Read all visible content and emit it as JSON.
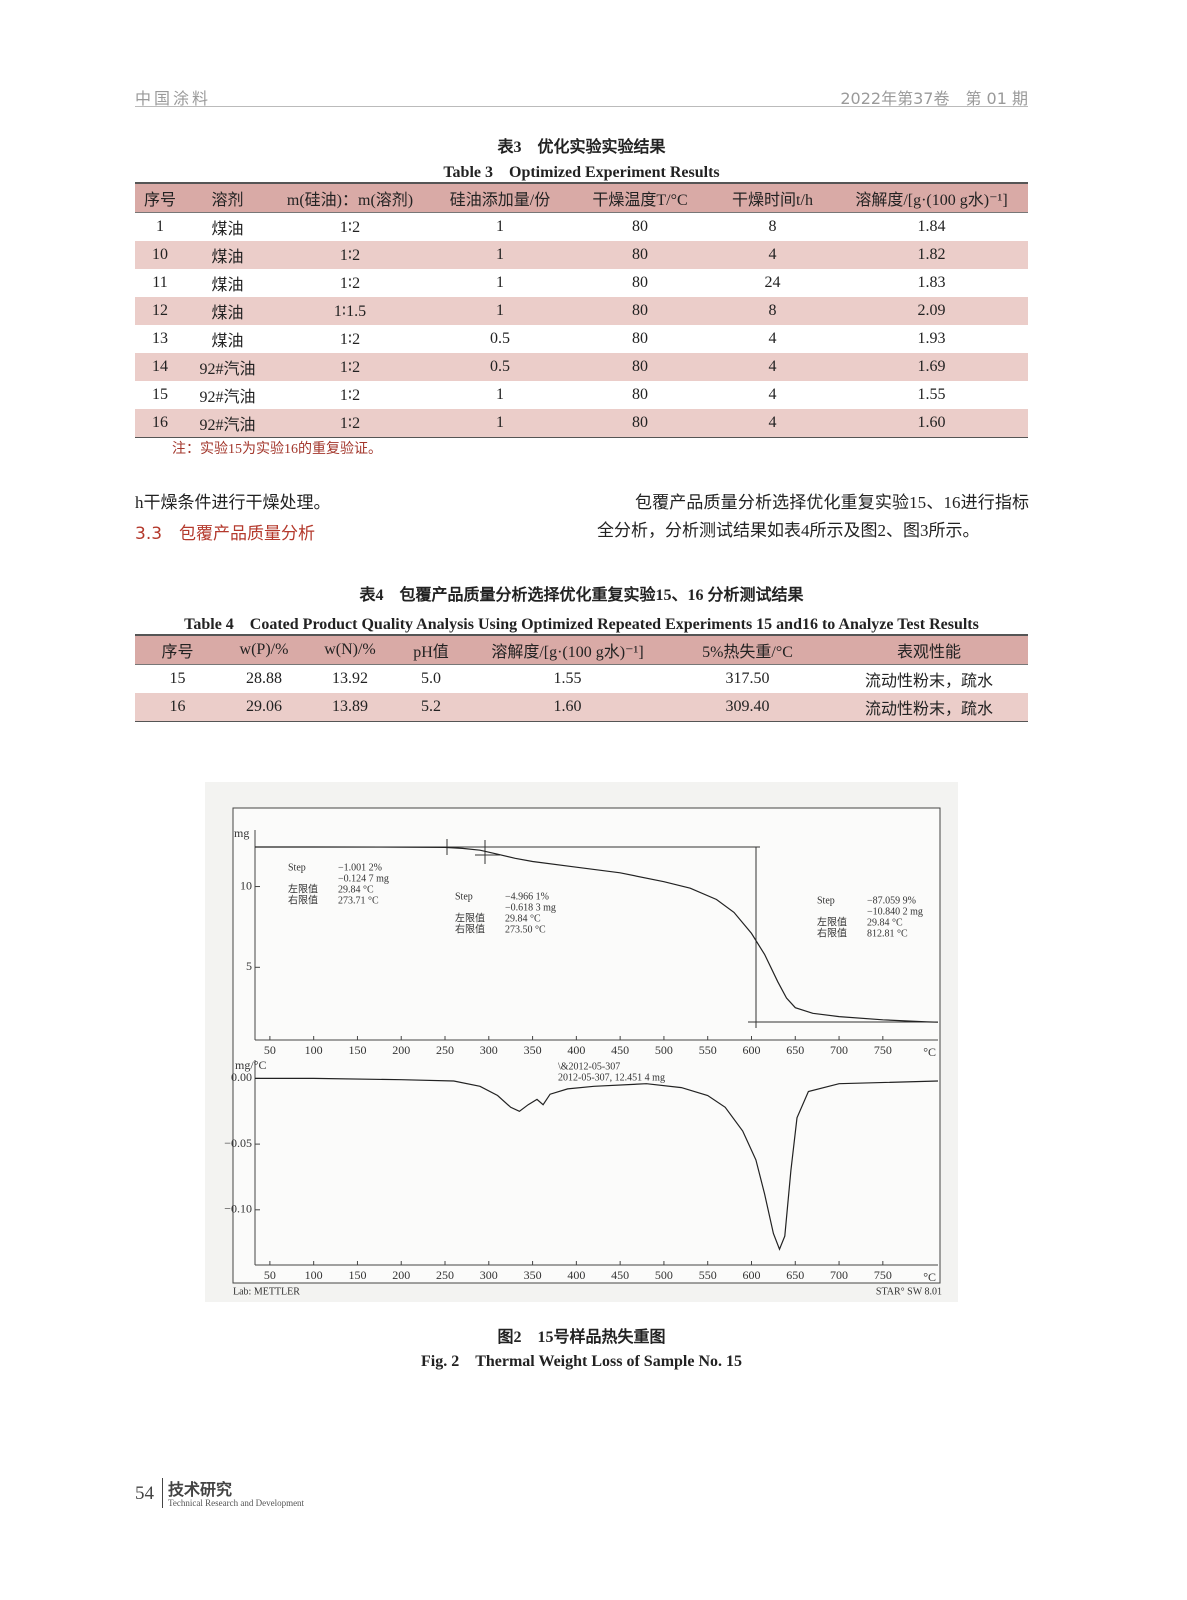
{
  "header": {
    "journal": "中国涂料",
    "issue": "2022年第37卷　第 01 期"
  },
  "table3": {
    "title_cn": "表3　优化实验实验结果",
    "title_en": "Table 3　Optimized Experiment Results",
    "columns": [
      "序号",
      "溶剂",
      "m(硅油)：m(溶剂)",
      "硅油添加量/份",
      "干燥温度T/°C",
      "干燥时间t/h",
      "溶解度/[g·(100 g水)⁻¹]"
    ],
    "rows": [
      [
        "1",
        "煤油",
        "1∶2",
        "1",
        "80",
        "8",
        "1.84"
      ],
      [
        "10",
        "煤油",
        "1∶2",
        "1",
        "80",
        "4",
        "1.82"
      ],
      [
        "11",
        "煤油",
        "1∶2",
        "1",
        "80",
        "24",
        "1.83"
      ],
      [
        "12",
        "煤油",
        "1∶1.5",
        "1",
        "80",
        "8",
        "2.09"
      ],
      [
        "13",
        "煤油",
        "1∶2",
        "0.5",
        "80",
        "4",
        "1.93"
      ],
      [
        "14",
        "92#汽油",
        "1∶2",
        "0.5",
        "80",
        "4",
        "1.69"
      ],
      [
        "15",
        "92#汽油",
        "1∶2",
        "1",
        "80",
        "4",
        "1.55"
      ],
      [
        "16",
        "92#汽油",
        "1∶2",
        "1",
        "80",
        "4",
        "1.60"
      ]
    ],
    "note": "注：实验15为实验16的重复验证。"
  },
  "body": {
    "left_text": "h干燥条件进行干燥处理。",
    "section_heading": "3.3　包覆产品质量分析",
    "right_text": "包覆产品质量分析选择优化重复实验15、16进行指标全分析，分析测试结果如表4所示及图2、图3所示。"
  },
  "table4": {
    "title_cn": "表4　包覆产品质量分析选择优化重复实验15、16 分析测试结果",
    "title_en": "Table 4　Coated Product Quality Analysis Using Optimized Repeated Experiments 15 and16 to Analyze Test Results",
    "columns": [
      "序号",
      "w(P)/%",
      "w(N)/%",
      "pH值",
      "溶解度/[g·(100 g水)⁻¹]",
      "5%热失重/°C",
      "表观性能"
    ],
    "rows": [
      [
        "15",
        "28.88",
        "13.92",
        "5.0",
        "1.55",
        "317.50",
        "流动性粉末，疏水"
      ],
      [
        "16",
        "29.06",
        "13.89",
        "5.2",
        "1.60",
        "309.40",
        "流动性粉末，疏水"
      ]
    ]
  },
  "chart_data": [
    {
      "type": "line",
      "y_label": "mg",
      "x_unit": "°C",
      "xlim": [
        33,
        813
      ],
      "xticks": [
        50,
        100,
        150,
        200,
        250,
        300,
        350,
        400,
        450,
        500,
        550,
        600,
        650,
        700,
        750
      ],
      "ylim": [
        0.5,
        13.5
      ],
      "yticks": [
        10,
        5
      ],
      "x": [
        33,
        100,
        200,
        250,
        270,
        290,
        310,
        330,
        350,
        400,
        450,
        500,
        530,
        560,
        580,
        600,
        615,
        630,
        640,
        650,
        670,
        700,
        750,
        800,
        813
      ],
      "series": [
        {
          "color": "#222222",
          "values": [
            12.45,
            12.45,
            12.44,
            12.42,
            12.36,
            12.25,
            12.0,
            11.75,
            11.55,
            11.2,
            10.85,
            10.3,
            9.9,
            9.2,
            8.4,
            7.1,
            5.8,
            4.1,
            3.1,
            2.5,
            2.15,
            1.95,
            1.75,
            1.62,
            1.6
          ]
        }
      ],
      "steps": [
        {
          "label": "Step",
          "mass_pct": "−1.001 2%",
          "mass_mg": "−0.124 7 mg",
          "left_label": "左限值",
          "left_value": "29.84 °C",
          "right_label": "右限值",
          "right_value": "273.71 °C"
        },
        {
          "label": "Step",
          "mass_pct": "−4.966 1%",
          "mass_mg": "−0.618 3 mg",
          "left_label": "左限值",
          "left_value": "29.84 °C",
          "right_label": "右限值",
          "right_value": "273.50 °C"
        },
        {
          "label": "Step",
          "mass_pct": "−87.059 9%",
          "mass_mg": "−10.840 2 mg",
          "left_label": "左限值",
          "left_value": "29.84 °C",
          "right_label": "右限值",
          "right_value": "812.81 °C"
        }
      ]
    },
    {
      "type": "line",
      "y_label": "mg/°C",
      "x_unit": "°C",
      "xlim": [
        33,
        813
      ],
      "xticks": [
        50,
        100,
        150,
        200,
        250,
        300,
        350,
        400,
        450,
        500,
        550,
        600,
        650,
        700,
        750
      ],
      "ylim": [
        -0.142,
        0.014
      ],
      "yticks": [
        {
          "value": 0,
          "label": "0.00"
        },
        {
          "value": -0.05,
          "label": "−0.05"
        },
        {
          "value": -0.1,
          "label": "−0.10"
        }
      ],
      "x": [
        33,
        100,
        200,
        260,
        290,
        310,
        325,
        335,
        345,
        355,
        362,
        370,
        390,
        420,
        480,
        520,
        550,
        570,
        590,
        605,
        615,
        625,
        632,
        638,
        645,
        652,
        665,
        700,
        813
      ],
      "series": [
        {
          "color": "#222222",
          "values": [
            0,
            0,
            -0.001,
            -0.002,
            -0.006,
            -0.013,
            -0.022,
            -0.025,
            -0.02,
            -0.016,
            -0.02,
            -0.012,
            -0.008,
            -0.006,
            -0.004,
            -0.007,
            -0.013,
            -0.022,
            -0.04,
            -0.062,
            -0.088,
            -0.118,
            -0.13,
            -0.12,
            -0.07,
            -0.03,
            -0.01,
            -0.004,
            -0.002
          ]
        }
      ],
      "annotations": [
        "\\&2012-05-307",
        "2012-05-307, 12.451 4 mg"
      ]
    }
  ],
  "figure": {
    "lab": "Lab: METTLER",
    "software": "STAR° SW 8.01",
    "caption_cn": "图2　15号样品热失重图",
    "caption_en": "Fig. 2　Thermal Weight Loss of Sample No. 15"
  },
  "footer": {
    "page": "54",
    "section_cn": "技术研究",
    "section_en": "Technical Research and Development"
  }
}
